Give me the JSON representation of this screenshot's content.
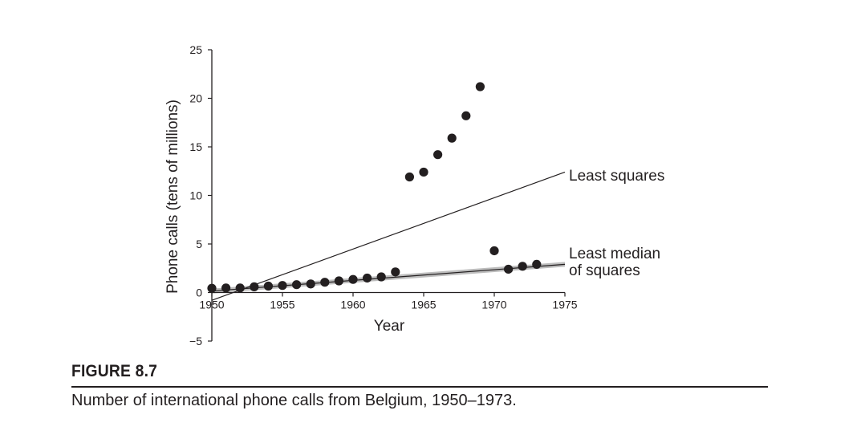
{
  "figure": {
    "label": "FIGURE 8.7",
    "caption": "Number of international phone calls from Belgium, 1950–1973."
  },
  "chart_data": {
    "type": "scatter",
    "title": "",
    "xlabel": "Year",
    "ylabel": "Phone calls (tens of millions)",
    "xlim": [
      1950,
      1975
    ],
    "ylim": [
      -5,
      25
    ],
    "xticks": [
      1950,
      1955,
      1960,
      1965,
      1970,
      1975
    ],
    "yticks": [
      -5,
      0,
      5,
      10,
      15,
      20,
      25
    ],
    "grid": false,
    "x": [
      1950,
      1951,
      1952,
      1953,
      1954,
      1955,
      1956,
      1957,
      1958,
      1959,
      1960,
      1961,
      1962,
      1963,
      1964,
      1965,
      1966,
      1967,
      1968,
      1969,
      1970,
      1971,
      1972,
      1973
    ],
    "y": [
      0.44,
      0.47,
      0.47,
      0.59,
      0.66,
      0.73,
      0.81,
      0.88,
      1.06,
      1.2,
      1.35,
      1.49,
      1.61,
      2.12,
      11.9,
      12.4,
      14.2,
      15.9,
      18.2,
      21.2,
      4.3,
      2.4,
      2.7,
      2.9
    ],
    "lines": [
      {
        "name": "Least squares",
        "x1": 1950,
        "y1": -0.8,
        "x2": 1975,
        "y2": 12.4
      },
      {
        "name": "Least median of squares",
        "x1": 1950,
        "y1": 0.15,
        "x2": 1975,
        "y2": 2.9
      }
    ],
    "annotations": {
      "least_squares": "Least squares",
      "lms_line1": "Least median",
      "lms_line2": "of squares"
    },
    "colors": {
      "ink": "#231f20",
      "band": "#bdbdbd"
    }
  }
}
